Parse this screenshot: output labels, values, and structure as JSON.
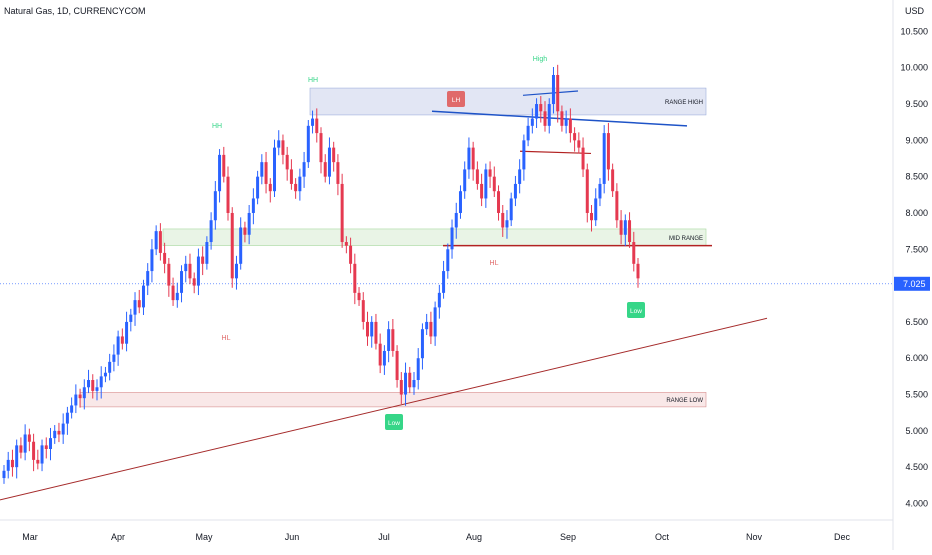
{
  "header": {
    "title": "Natural Gas, 1D, CURRENCYCOM",
    "currency": "USD"
  },
  "price_axis": {
    "ticks": [
      "10.500",
      "10.000",
      "9.500",
      "9.000",
      "8.500",
      "8.000",
      "7.500",
      "7.000",
      "6.500",
      "6.000",
      "5.500",
      "5.000",
      "4.500",
      "4.000"
    ],
    "tick_values": [
      10.5,
      10.0,
      9.5,
      9.0,
      8.5,
      8.0,
      7.5,
      7.0,
      6.5,
      6.0,
      5.5,
      5.0,
      4.5,
      4.0
    ],
    "last_price": "7.025",
    "last_price_value": 7.025
  },
  "time_axis": {
    "labels": [
      "Mar",
      "Apr",
      "May",
      "Jun",
      "Jul",
      "Aug",
      "Sep",
      "Oct",
      "Nov",
      "Dec"
    ]
  },
  "colors": {
    "up": "#2962ff",
    "down": "#e53950",
    "range_high_fill": "#d6dcf0",
    "mid_range_fill": "#dff0dc",
    "range_low_fill": "#f6dede",
    "trendline": "#a52a2a",
    "mid_line": "#b22222",
    "blue_line": "#1e53c7",
    "green_label": "#36d688",
    "red_label": "#e06a6a"
  },
  "annotations": {
    "range_high": "RANGE HIGH",
    "mid_range": "MID RANGE",
    "range_low": "RANGE LOW",
    "hh1": "HH",
    "hh2": "HH",
    "high": "High",
    "lh": "LH",
    "hl1": "HL",
    "hl2": "HL",
    "low1": "Low",
    "low2": "Low"
  },
  "chart_data": {
    "type": "candlestick",
    "title": "Natural Gas, 1D, CURRENCYCOM",
    "ylabel": "USD",
    "ylim": [
      3.8,
      10.85
    ],
    "x_labels": [
      "Mar",
      "Apr",
      "May",
      "Jun",
      "Jul",
      "Aug",
      "Sep",
      "Oct",
      "Nov",
      "Dec"
    ],
    "last_price": 7.025,
    "zones": [
      {
        "name": "RANGE HIGH",
        "low": 9.35,
        "high": 9.72
      },
      {
        "name": "MID RANGE",
        "low": 7.55,
        "high": 7.78
      },
      {
        "name": "RANGE LOW",
        "low": 5.33,
        "high": 5.53
      }
    ],
    "closes": [
      4.45,
      4.6,
      4.5,
      4.8,
      4.7,
      4.95,
      4.85,
      4.6,
      4.55,
      4.8,
      4.75,
      4.9,
      5.0,
      4.95,
      5.1,
      5.25,
      5.35,
      5.5,
      5.45,
      5.6,
      5.7,
      5.55,
      5.6,
      5.75,
      5.8,
      5.95,
      6.05,
      6.3,
      6.2,
      6.5,
      6.6,
      6.8,
      6.7,
      7.0,
      7.2,
      7.5,
      7.75,
      7.45,
      7.3,
      7.0,
      6.8,
      6.9,
      7.2,
      7.3,
      7.1,
      7.0,
      7.4,
      7.3,
      7.6,
      7.9,
      8.3,
      8.8,
      8.5,
      8.0,
      7.1,
      7.3,
      7.8,
      7.7,
      8.0,
      8.2,
      8.5,
      8.7,
      8.4,
      8.3,
      8.9,
      9.0,
      8.8,
      8.6,
      8.4,
      8.3,
      8.5,
      8.7,
      9.2,
      9.3,
      9.1,
      8.7,
      8.5,
      8.9,
      8.7,
      8.4,
      7.6,
      7.55,
      7.3,
      6.9,
      6.8,
      6.5,
      6.3,
      6.5,
      6.2,
      5.9,
      6.1,
      6.4,
      6.1,
      5.7,
      5.5,
      5.8,
      5.6,
      5.7,
      6.0,
      6.4,
      6.5,
      6.3,
      6.7,
      6.9,
      7.2,
      7.5,
      7.8,
      8.0,
      8.3,
      8.6,
      8.9,
      8.6,
      8.4,
      8.2,
      8.6,
      8.5,
      8.3,
      8.0,
      7.8,
      7.9,
      8.2,
      8.4,
      8.6,
      9.0,
      9.2,
      9.3,
      9.5,
      9.4,
      9.2,
      9.5,
      9.9,
      9.4,
      9.2,
      9.3,
      9.1,
      9.0,
      8.9,
      8.6,
      8.0,
      7.9,
      8.2,
      8.4,
      9.1,
      8.6,
      8.3,
      7.9,
      7.7,
      7.9,
      7.6,
      7.3,
      7.1
    ]
  }
}
